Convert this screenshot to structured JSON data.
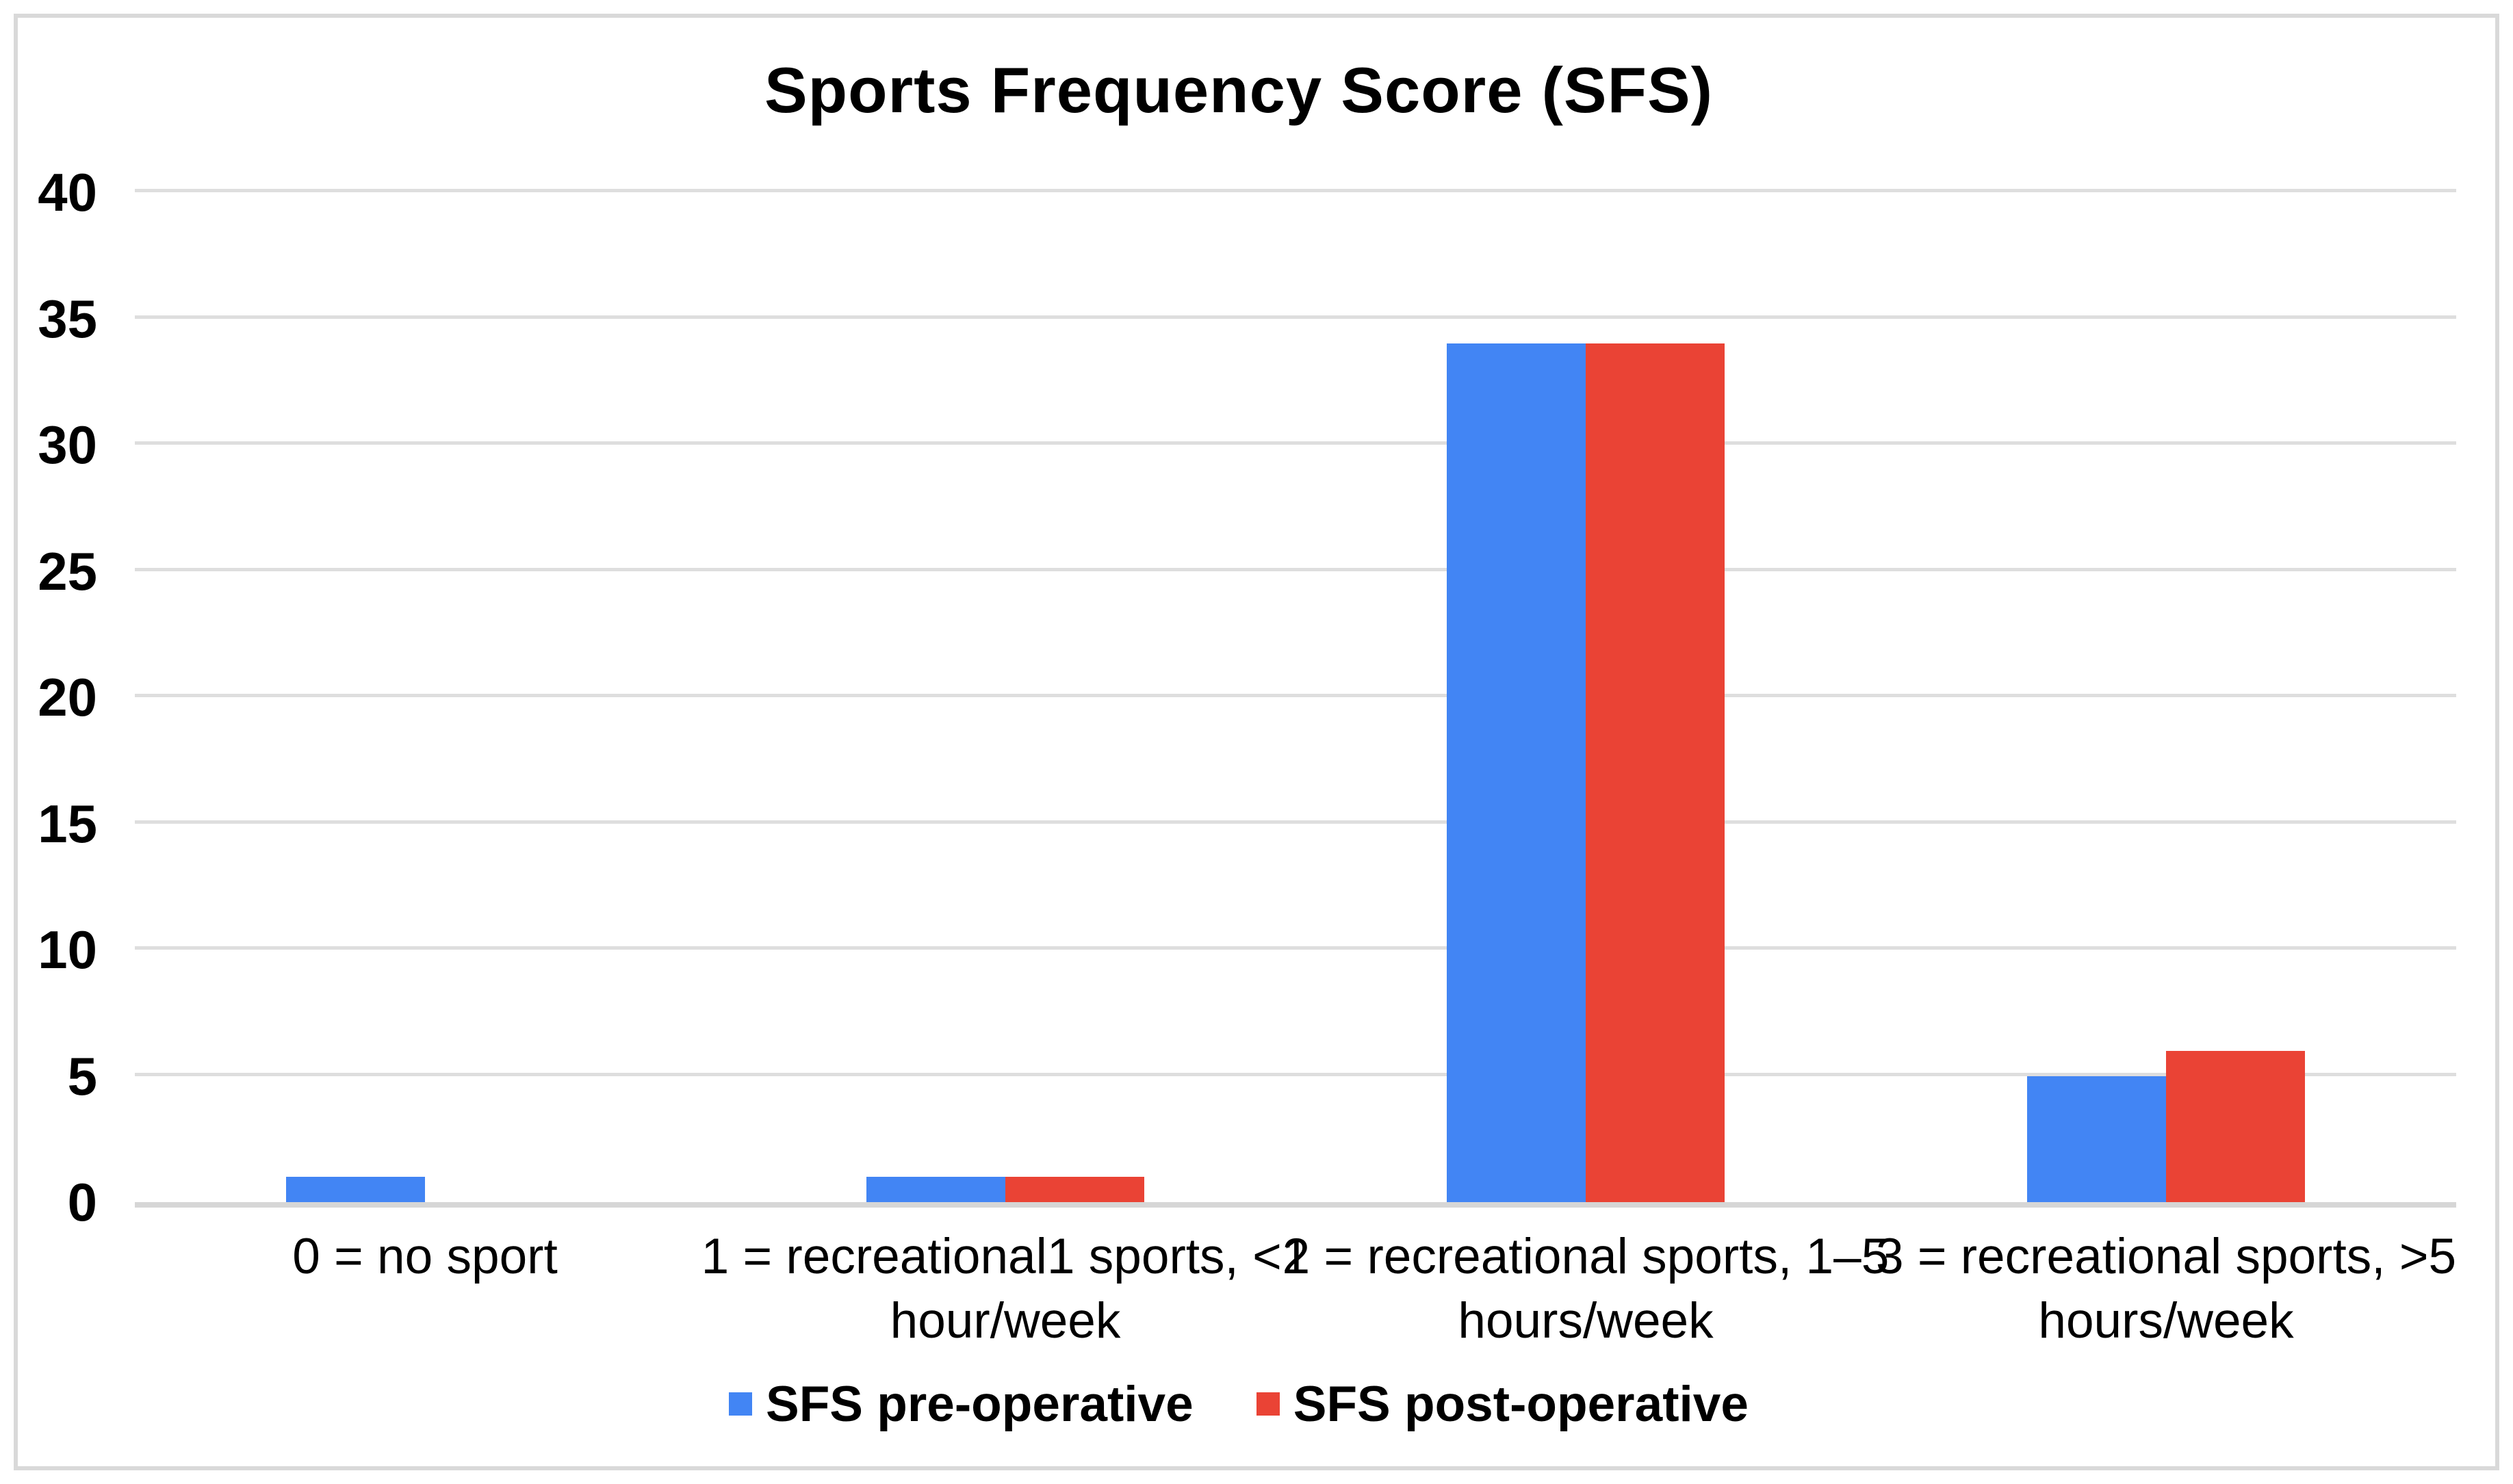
{
  "chart_data": {
    "type": "bar",
    "title": "Sports Frequency Score (SFS)",
    "categories": [
      "0 = no sport",
      "1 = recreational1 sports, <1 hour/week",
      "2 = recreational sports, 1–5 hours/week",
      "3 = recreational sports, >5 hours/week"
    ],
    "category_lines": [
      [
        "0 = no sport"
      ],
      [
        "1 = recreational1 sports, <1",
        "hour/week"
      ],
      [
        "2 = recreational sports, 1–5",
        "hours/week"
      ],
      [
        "3 = recreational sports, >5",
        "hours/week"
      ]
    ],
    "series": [
      {
        "name": "SFS pre-operative",
        "color": "#4285F4",
        "values": [
          1,
          1,
          34,
          5
        ]
      },
      {
        "name": "SFS post-operative",
        "color": "#EA4335",
        "values": [
          0,
          1,
          34,
          6
        ]
      }
    ],
    "xlabel": "",
    "ylabel": "",
    "ylim": [
      0,
      40
    ],
    "yticks": [
      0,
      5,
      10,
      15,
      20,
      25,
      30,
      35,
      40
    ],
    "grid": true,
    "legend_position": "bottom",
    "gridline_color": "#dedede",
    "frame_border_color": "#d9d9d9",
    "background_color": "#ffffff",
    "text_color": "#000000"
  }
}
